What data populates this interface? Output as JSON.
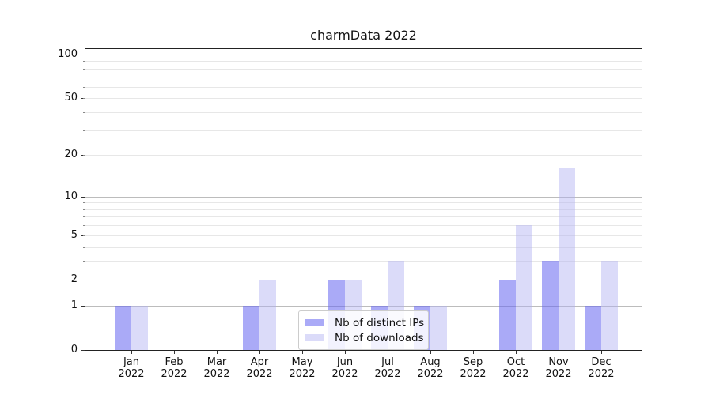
{
  "title": "charmData 2022",
  "chart_data": {
    "type": "bar",
    "title": "charmData 2022",
    "categories": [
      "Jan 2022",
      "Feb 2022",
      "Mar 2022",
      "Apr 2022",
      "May 2022",
      "Jun 2022",
      "Jul 2022",
      "Aug 2022",
      "Sep 2022",
      "Oct 2022",
      "Nov 2022",
      "Dec 2022"
    ],
    "series": [
      {
        "name": "Nb of distinct IPs",
        "color": "rgba(100,100,240,0.55)",
        "values": [
          1,
          0,
          0,
          1,
          0,
          2,
          1,
          1,
          0,
          2,
          3,
          1
        ]
      },
      {
        "name": "Nb of downloads",
        "color": "rgba(175,175,242,0.45)",
        "values": [
          1,
          0,
          0,
          2,
          0,
          2,
          3,
          1,
          0,
          6,
          16,
          3
        ]
      }
    ],
    "xlabel": "",
    "ylabel": "",
    "yscale": "log1p",
    "ylim": [
      0,
      109
    ],
    "yticks": [
      0,
      1,
      2,
      5,
      10,
      20,
      50,
      100
    ],
    "grid": {
      "major": [
        1,
        10,
        100
      ],
      "minor": [
        2,
        3,
        4,
        5,
        6,
        7,
        8,
        9,
        20,
        30,
        40,
        50,
        60,
        70,
        80,
        90
      ],
      "major_color": "#bcbcbc",
      "minor_color": "#e7e7e7"
    },
    "legend_position": "lower center"
  }
}
